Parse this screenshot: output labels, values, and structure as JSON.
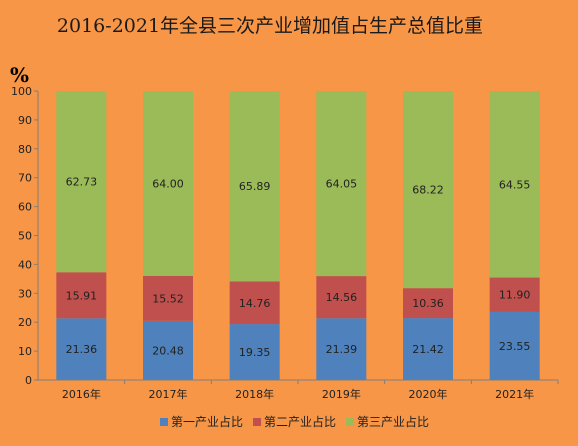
{
  "chart_data": {
    "type": "bar",
    "stacked": true,
    "title": "2016-2021年全县三次产业增加值占生产总值比重",
    "ylabel": "%",
    "xlabel": "",
    "ylim": [
      0,
      100
    ],
    "yticks": [
      0,
      10,
      20,
      30,
      40,
      50,
      60,
      70,
      80,
      90,
      100
    ],
    "categories": [
      "2016年",
      "2017年",
      "2018年",
      "2019年",
      "2020年",
      "2021年"
    ],
    "series": [
      {
        "name": "第一产业占比",
        "color": "#4f81bd",
        "values": [
          21.36,
          20.48,
          19.35,
          21.39,
          21.42,
          23.55
        ]
      },
      {
        "name": "第二产业占比",
        "color": "#c0504d",
        "values": [
          15.91,
          15.52,
          14.76,
          14.56,
          10.36,
          11.9
        ]
      },
      {
        "name": "第三产业占比",
        "color": "#9bbb59",
        "values": [
          62.73,
          64.0,
          65.89,
          64.05,
          68.22,
          64.55
        ]
      }
    ],
    "grid": false,
    "legend_position": "bottom"
  }
}
